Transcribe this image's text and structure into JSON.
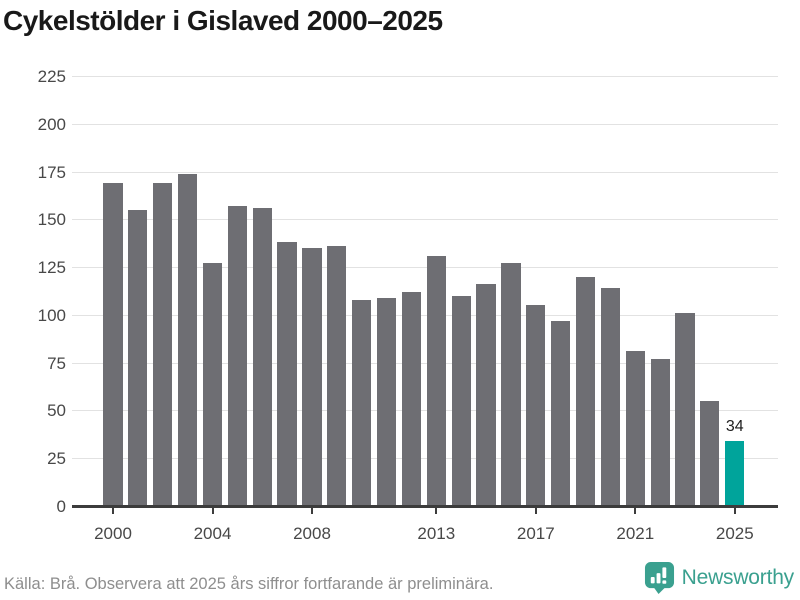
{
  "title": "Cykelstölder i Gislaved 2000–2025",
  "footer": {
    "source_note": "Källa: Brå. Observera att 2025 års siffror fortfarande är preliminära.",
    "logo_text": "Newsworthy"
  },
  "colors": {
    "bar": "#6e6e73",
    "highlight_bar": "#00a49b",
    "gridline": "#e2e2e2",
    "axis_line": "#3c3c3c",
    "axis_label": "#484848",
    "title_text": "#191919",
    "footer_text": "#8e8e8e",
    "logo_teal": "#3aa08f"
  },
  "chart_data": {
    "type": "bar",
    "title": "Cykelstölder i Gislaved 2000–2025",
    "categories": [
      2000,
      2001,
      2002,
      2003,
      2004,
      2005,
      2006,
      2007,
      2008,
      2009,
      2010,
      2011,
      2012,
      2013,
      2014,
      2015,
      2016,
      2017,
      2018,
      2019,
      2020,
      2021,
      2022,
      2023,
      2024,
      2025
    ],
    "values": [
      169,
      155,
      169,
      174,
      127,
      157,
      156,
      138,
      135,
      136,
      108,
      109,
      112,
      131,
      110,
      116,
      127,
      105,
      97,
      120,
      114,
      81,
      77,
      101,
      55,
      34
    ],
    "highlight_index": 25,
    "annotation": {
      "year": 2025,
      "text": "34"
    },
    "y_ticks": [
      0,
      25,
      50,
      75,
      100,
      125,
      150,
      175,
      200,
      225
    ],
    "x_tick_years": [
      2000,
      2004,
      2008,
      2013,
      2017,
      2021,
      2025
    ],
    "ylim": [
      0,
      225
    ],
    "xlabel": "",
    "ylabel": "",
    "grid": "horizontal",
    "legend": "none"
  }
}
